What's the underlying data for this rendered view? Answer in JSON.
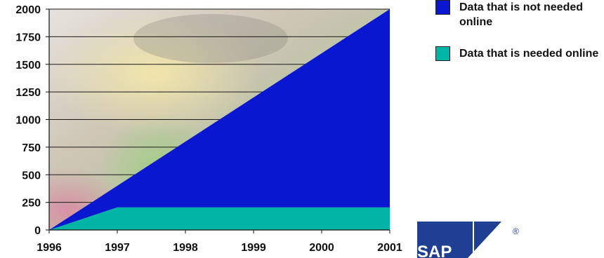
{
  "chart_data": {
    "type": "area",
    "x": [
      1996,
      1997,
      1998,
      1999,
      2000,
      2001
    ],
    "x_tick_labels": [
      "1996",
      "1997",
      "1998",
      "1999",
      "2000",
      "2001"
    ],
    "y_tick_labels": [
      "0",
      "250",
      "500",
      "750",
      "1000",
      "1250",
      "1500",
      "1750",
      "2000"
    ],
    "xlim": [
      1996,
      2001
    ],
    "ylim": [
      0,
      2000
    ],
    "grid": true,
    "legend_position": "right",
    "series": [
      {
        "name": "Data that is needed online",
        "values": [
          0,
          205,
          205,
          205,
          205,
          205
        ],
        "color": "#00b5a5"
      },
      {
        "name": "Data that is not needed online",
        "values": [
          0,
          195,
          595,
          995,
          1395,
          1795
        ],
        "color": "#0a17d1"
      }
    ]
  },
  "legend": {
    "items": [
      {
        "label": "Data that is not needed online",
        "color": "#0a17d1"
      },
      {
        "label": "Data that is needed online",
        "color": "#00b5a5"
      }
    ]
  },
  "logo": {
    "text": "SAP",
    "mark": "®",
    "color": "#1f3f92"
  }
}
